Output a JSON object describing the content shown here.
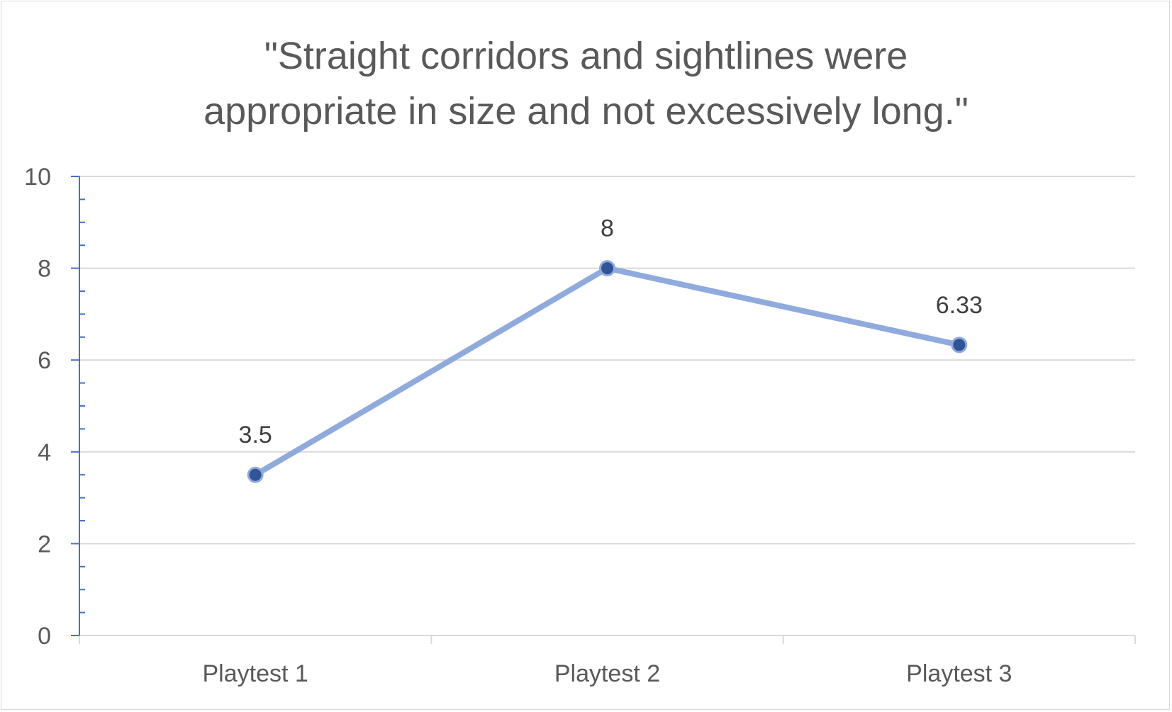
{
  "chart_data": {
    "type": "line",
    "title_lines": [
      "\"Straight corridors and sightlines were",
      "appropriate in size and not excessively long.\""
    ],
    "categories": [
      "Playtest 1",
      "Playtest 2",
      "Playtest 3"
    ],
    "series": [
      {
        "values": [
          3.5,
          8,
          6.33
        ],
        "data_labels": [
          "3.5",
          "8",
          "6.33"
        ]
      }
    ],
    "y_ticks": [
      "0",
      "2",
      "4",
      "6",
      "8",
      "10"
    ],
    "ylim": [
      0,
      10
    ],
    "grid": true,
    "legend": "none",
    "colors": {
      "line": "#8faadc",
      "marker": "#2f5597",
      "marker_edge": "#8faadc",
      "axis": "#4472c4",
      "grid": "#d9d9d9",
      "x_axis": "#d9d9d9"
    }
  }
}
